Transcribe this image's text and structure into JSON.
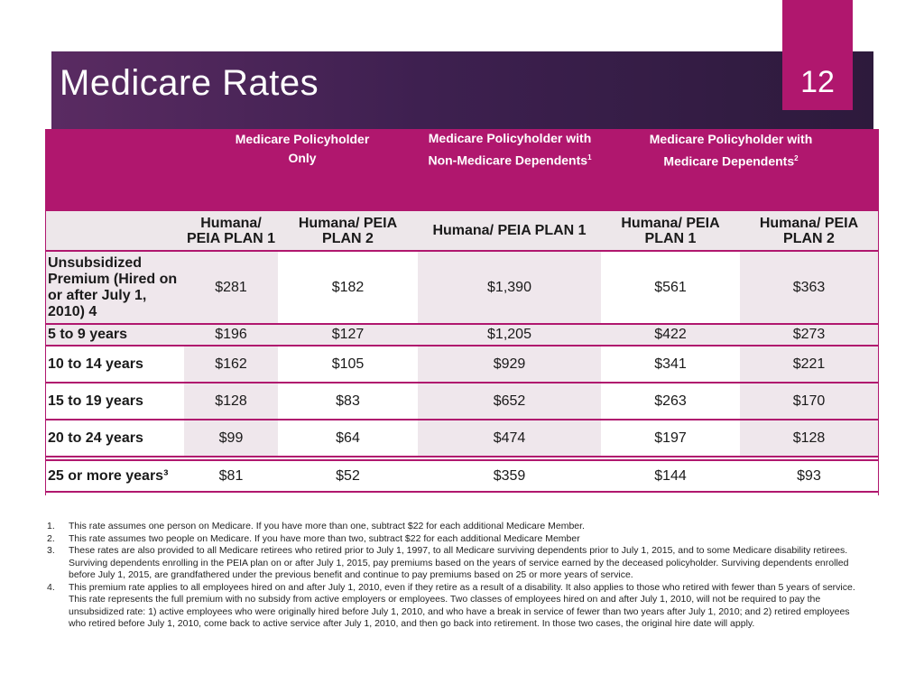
{
  "slide": {
    "title": "Medicare Rates",
    "number": "12"
  },
  "table": {
    "group_headers": [
      {
        "text": "Medicare Policyholder Only",
        "sup": ""
      },
      {
        "text": "Medicare Policyholder with Non-Medicare Dependents",
        "sup": "1"
      },
      {
        "text": "Medicare Policyholder with Medicare Dependents",
        "sup": "2"
      }
    ],
    "plan_headers": [
      "Humana/ PEIA PLAN 1",
      "Humana/ PEIA PLAN 2",
      "Humana/ PEIA PLAN 1",
      "Humana/ PEIA PLAN 1",
      "Humana/ PEIA PLAN 2"
    ],
    "rows": [
      {
        "label": "Unsubsidized Premium (Hired on or after July 1, 2010) 4",
        "values": [
          "$281",
          "$182",
          "$1,390",
          "$561",
          "$363"
        ]
      },
      {
        "label": "5 to 9 years",
        "values": [
          "$196",
          "$127",
          "$1,205",
          "$422",
          "$273"
        ]
      },
      {
        "label": "10 to 14 years",
        "values": [
          "$162",
          "$105",
          "$929",
          "$341",
          "$221"
        ]
      },
      {
        "label": "15 to 19 years",
        "values": [
          "$128",
          "$83",
          "$652",
          "$263",
          "$170"
        ]
      },
      {
        "label": "20 to 24 years",
        "values": [
          "$99",
          "$64",
          "$474",
          "$197",
          "$128"
        ]
      },
      {
        "label": "25 or more years³",
        "values": [
          "$81",
          "$52",
          "$359",
          "$144",
          "$93"
        ]
      }
    ]
  },
  "footnotes": [
    {
      "num": "1.",
      "text": "This rate assumes one person on Medicare. If you have more than one, subtract $22 for each additional Medicare Member."
    },
    {
      "num": "2.",
      "text": "This rate assumes two people on Medicare. If you have more than two, subtract $22 for each additional Medicare Member"
    },
    {
      "num": "3.",
      "text": "These rates are also provided to all Medicare retirees who retired prior to July 1, 1997, to all Medicare surviving dependents prior to July 1, 2015, and to some Medicare disability retirees. Surviving dependents enrolling in the PEIA plan on or after July 1, 2015, pay premiums based on the years of service earned by the deceased policyholder. Surviving dependents enrolled before July 1, 2015, are grandfathered under the previous benefit and continue to pay premiums based on 25 or more years of service."
    },
    {
      "num": "4.",
      "text": "This premium rate applies to all employees hired on and after July 1, 2010, even if they retire as a result of a disability. It also applies to those who retired with fewer than 5 years of service. This rate represents the full premium with no subsidy from active employers or employees. Two classes of employees hired on and after July 1, 2010, will not be required to pay the unsubsidized rate: 1) active employees who were originally hired before July 1, 2010, and who have a break in service of fewer than two years after July 1, 2010; and 2) retired employees who retired before July 1, 2010, come back to active service after July 1, 2010, and then go back into retirement. In those two cases, the original hire date will apply."
    }
  ],
  "colors": {
    "accent": "#b0176e",
    "banner": "#3e2050",
    "shade": "#efe7ec"
  }
}
